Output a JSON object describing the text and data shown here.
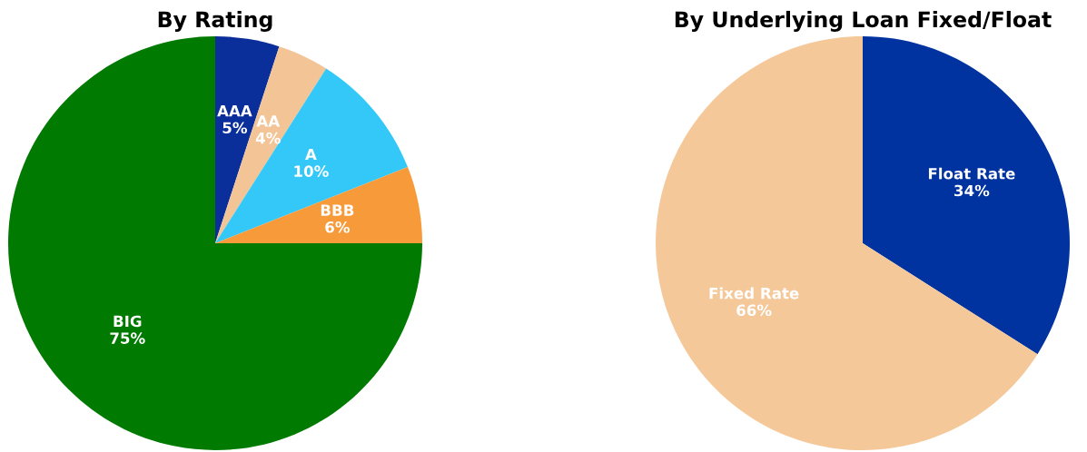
{
  "chart_data": [
    {
      "type": "pie",
      "title": "By Rating",
      "categories": [
        "AAA",
        "AA",
        "A",
        "BBB",
        "BIG"
      ],
      "values": [
        5,
        4,
        10,
        6,
        75
      ],
      "value_labels": [
        "5%",
        "4%",
        "10%",
        "6%",
        "75%"
      ],
      "colors": [
        "#0a2e9a",
        "#f2c496",
        "#33c8f8",
        "#f79a3a",
        "#007a00"
      ],
      "legend": false
    },
    {
      "type": "pie",
      "title": "By Underlying Loan Fixed/Float",
      "categories": [
        "Float Rate",
        "Fixed Rate"
      ],
      "values": [
        34,
        66
      ],
      "value_labels": [
        "34%",
        "66%"
      ],
      "colors": [
        "#0033a0",
        "#f5c89a"
      ],
      "legend": false
    }
  ]
}
